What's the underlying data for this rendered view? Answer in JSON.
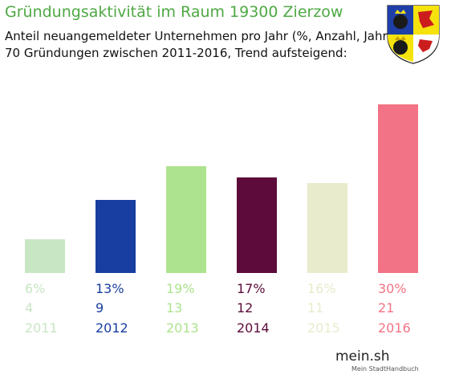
{
  "title": "Gründungsaktivität im Raum 19300 Zierzow",
  "subtitle_line1": "Anteil neuangemeldeter Unternehmen pro Jahr (%, Anzahl, Jahr)",
  "subtitle_line2": "70 Gründungen zwischen 2011-2016, Trend aufsteigend:",
  "logo": {
    "name": "mein.sh",
    "tagline": "Mein StadtHandbuch"
  },
  "chart_data": {
    "type": "bar",
    "categories": [
      "2011",
      "2012",
      "2013",
      "2014",
      "2015",
      "2016"
    ],
    "percent_labels": [
      "6%",
      "13%",
      "19%",
      "17%",
      "16%",
      "30%"
    ],
    "values": [
      6,
      13,
      19,
      17,
      16,
      30
    ],
    "counts": [
      "4",
      "9",
      "13",
      "12",
      "11",
      "21"
    ],
    "colors": [
      "#c8e6c4",
      "#173ea0",
      "#ade38e",
      "#5c0b3a",
      "#e8ebcc",
      "#f27385"
    ],
    "ylim": [
      0,
      30
    ],
    "grid": false
  }
}
